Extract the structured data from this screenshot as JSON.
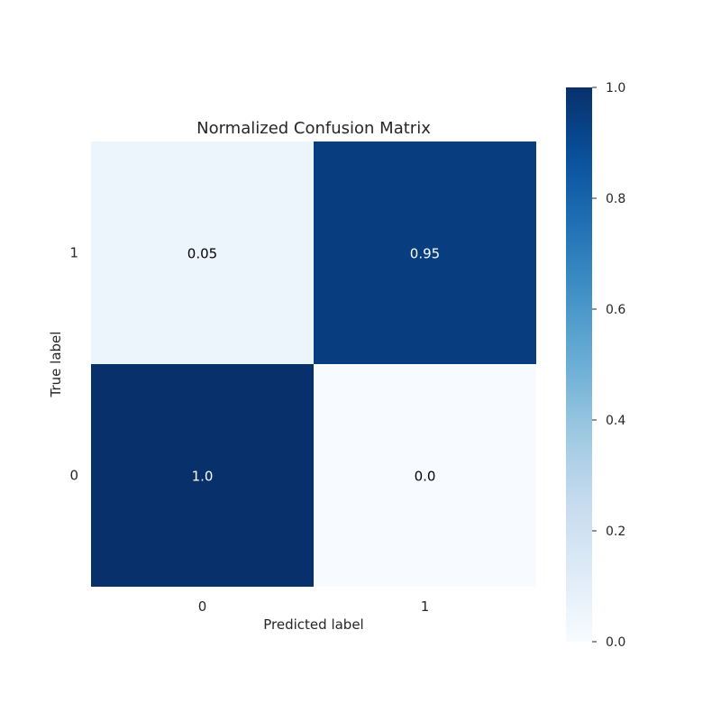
{
  "chart_data": {
    "type": "heatmap",
    "title": "Normalized Confusion Matrix",
    "xlabel": "Predicted label",
    "ylabel": "True label",
    "x_categories": [
      "0",
      "1"
    ],
    "y_categories_top_to_bottom": [
      "1",
      "0"
    ],
    "cells": [
      {
        "true": "1",
        "pred": "0",
        "value": 0.05,
        "label": "0.05"
      },
      {
        "true": "1",
        "pred": "1",
        "value": 0.95,
        "label": "0.95"
      },
      {
        "true": "0",
        "pred": "0",
        "value": 1.0,
        "label": "1.0"
      },
      {
        "true": "0",
        "pred": "1",
        "value": 0.0,
        "label": "0.0"
      }
    ],
    "colormap": "Blues",
    "colorbar": {
      "range": [
        0.0,
        1.0
      ],
      "ticks": [
        "0.0",
        "0.2",
        "0.4",
        "0.6",
        "0.8",
        "1.0"
      ],
      "tick_values": [
        0.0,
        0.2,
        0.4,
        0.6,
        0.8,
        1.0
      ]
    },
    "grid": false
  }
}
